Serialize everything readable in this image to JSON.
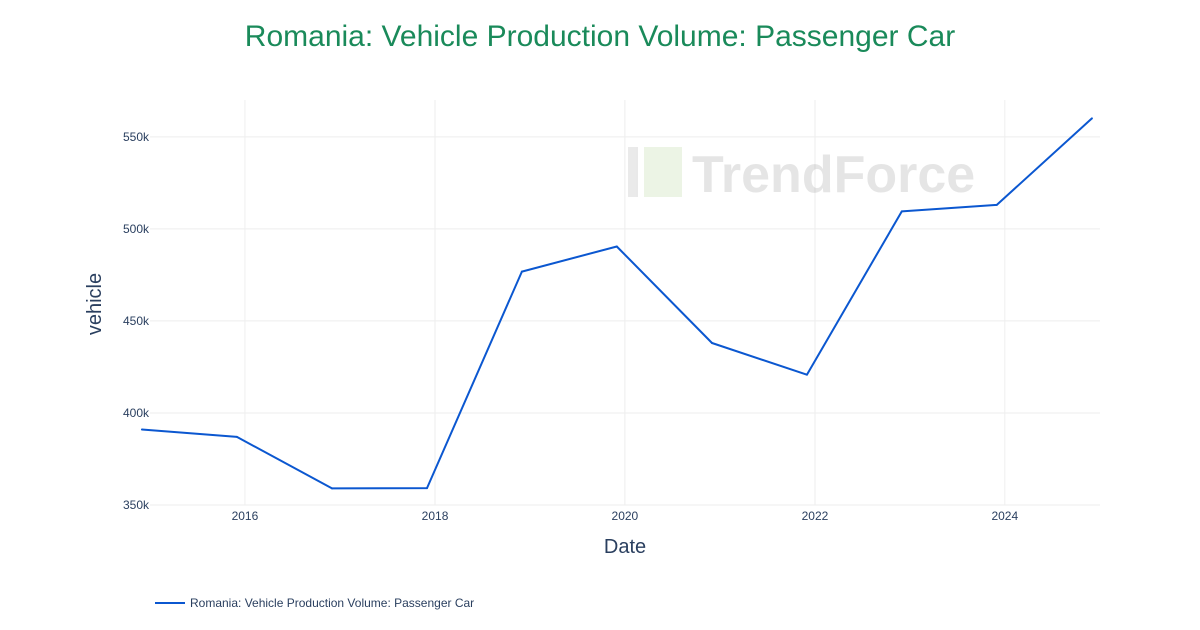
{
  "chart_data": {
    "type": "line",
    "title": "Romania: Vehicle Production Volume: Passenger Car",
    "xlabel": "Date",
    "ylabel": "vehicle",
    "xlim": [
      "2015-01-01",
      "2025-01-01"
    ],
    "ylim": [
      350000,
      570000
    ],
    "x_ticks": [
      {
        "date": "2016-01-01",
        "label": "2016"
      },
      {
        "date": "2018-01-01",
        "label": "2018"
      },
      {
        "date": "2020-01-01",
        "label": "2020"
      },
      {
        "date": "2022-01-01",
        "label": "2022"
      },
      {
        "date": "2024-01-01",
        "label": "2024"
      }
    ],
    "y_ticks": [
      {
        "value": 350000,
        "label": "350k"
      },
      {
        "value": 400000,
        "label": "400k"
      },
      {
        "value": 450000,
        "label": "450k"
      },
      {
        "value": 500000,
        "label": "500k"
      },
      {
        "value": 550000,
        "label": "550k"
      }
    ],
    "grid": true,
    "legend_position": "bottom-left",
    "series": [
      {
        "name": "Romania: Vehicle Production Volume: Passenger Car",
        "color": "#0b57d0",
        "points": [
          {
            "x": "2014-12-01",
            "y": 391000
          },
          {
            "x": "2015-12-01",
            "y": 387000
          },
          {
            "x": "2016-12-01",
            "y": 359000
          },
          {
            "x": "2017-12-01",
            "y": 359200
          },
          {
            "x": "2018-12-01",
            "y": 476800
          },
          {
            "x": "2019-12-01",
            "y": 490400
          },
          {
            "x": "2020-12-01",
            "y": 438000
          },
          {
            "x": "2021-12-01",
            "y": 420800
          },
          {
            "x": "2022-12-01",
            "y": 509500
          },
          {
            "x": "2023-12-01",
            "y": 513000
          },
          {
            "x": "2024-12-01",
            "y": 560000
          }
        ]
      }
    ]
  },
  "watermark": "TrendForce"
}
